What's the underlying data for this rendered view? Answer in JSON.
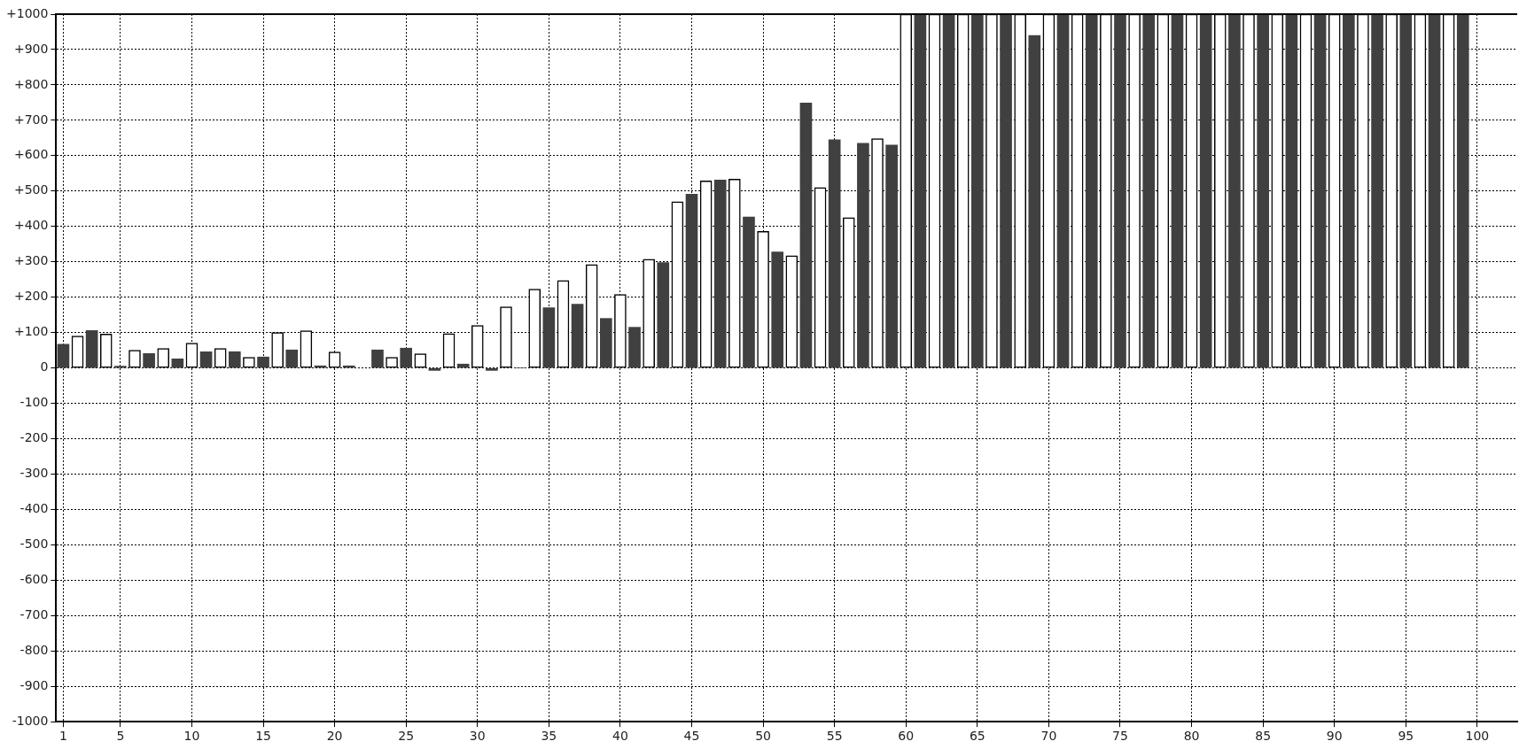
{
  "chart_data": {
    "type": "bar",
    "xlim": [
      0.5,
      102.8
    ],
    "xticks": [
      1,
      5,
      10,
      15,
      20,
      25,
      30,
      35,
      40,
      45,
      50,
      55,
      60,
      65,
      70,
      75,
      80,
      85,
      90,
      95,
      100
    ],
    "ylim": [
      -1000,
      1000
    ],
    "yticks": [
      {
        "value": -1000,
        "label": "-1000"
      },
      {
        "value": -900,
        "label": "-900"
      },
      {
        "value": -800,
        "label": "-800"
      },
      {
        "value": -700,
        "label": "-700"
      },
      {
        "value": -600,
        "label": "-600"
      },
      {
        "value": -500,
        "label": "-500"
      },
      {
        "value": -400,
        "label": "-400"
      },
      {
        "value": -300,
        "label": "-300"
      },
      {
        "value": -200,
        "label": "-200"
      },
      {
        "value": -100,
        "label": "-100"
      },
      {
        "value": 0,
        "label": "0"
      },
      {
        "value": 100,
        "label": "+100"
      },
      {
        "value": 200,
        "label": "+200"
      },
      {
        "value": 300,
        "label": "+300"
      },
      {
        "value": 400,
        "label": "+400"
      },
      {
        "value": 500,
        "label": "+500"
      },
      {
        "value": 600,
        "label": "+600"
      },
      {
        "value": 700,
        "label": "+700"
      },
      {
        "value": 800,
        "label": "+800"
      },
      {
        "value": 900,
        "label": "+900"
      },
      {
        "value": 1000,
        "label": "+1000"
      }
    ],
    "grid": true,
    "legend": false,
    "series": [
      {
        "color": "#ffffff",
        "x": [
          2,
          4,
          6,
          8,
          10,
          12,
          14,
          16,
          18,
          20,
          22,
          24,
          26,
          28,
          30,
          32,
          34,
          36,
          38,
          40,
          42,
          44,
          46,
          48,
          50,
          52,
          54,
          56,
          58,
          60,
          62,
          64,
          66,
          68,
          70,
          72,
          74,
          76,
          78,
          80,
          82,
          84,
          86,
          88,
          90,
          92,
          94,
          96,
          98
        ],
        "values": [
          90,
          96,
          50,
          55,
          70,
          55,
          30,
          100,
          105,
          45,
          0,
          30,
          40,
          97,
          120,
          173,
          223,
          247,
          292,
          208,
          307,
          470,
          529,
          534,
          386,
          317,
          510,
          425,
          648,
          1000,
          1000,
          1000,
          1000,
          1000,
          1000,
          1000,
          1000,
          1000,
          1000,
          1000,
          1000,
          1000,
          1000,
          1000,
          1000,
          1000,
          1000,
          1000,
          1000
        ]
      },
      {
        "color": "#404040",
        "x": [
          1,
          3,
          5,
          7,
          9,
          11,
          13,
          15,
          17,
          19,
          21,
          23,
          25,
          27,
          29,
          31,
          33,
          35,
          37,
          39,
          41,
          43,
          45,
          47,
          49,
          51,
          53,
          55,
          57,
          59,
          61,
          63,
          65,
          67,
          69,
          71,
          73,
          75,
          77,
          79,
          81,
          83,
          85,
          87,
          89,
          91,
          93,
          95,
          97,
          99
        ],
        "values": [
          67,
          106,
          5,
          41,
          26,
          46,
          46,
          31,
          51,
          6,
          6,
          51,
          56,
          -7,
          11,
          -7,
          0,
          170,
          180,
          140,
          115,
          298,
          491,
          531,
          427,
          328,
          749,
          645,
          635,
          630,
          1000,
          1000,
          1000,
          1000,
          940,
          1000,
          1000,
          1000,
          1000,
          1000,
          1000,
          1000,
          1000,
          1000,
          1000,
          1000,
          1000,
          1000,
          1000,
          1000
        ]
      }
    ]
  }
}
